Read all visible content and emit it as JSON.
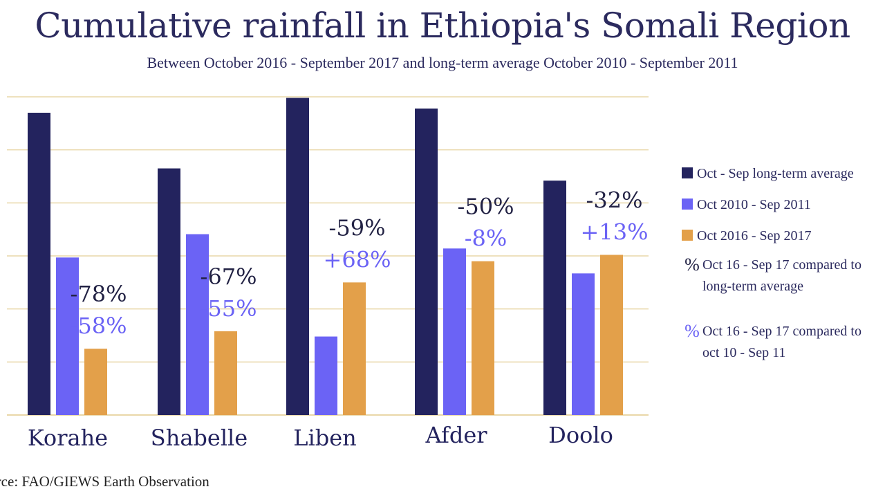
{
  "chart_data": {
    "type": "bar",
    "title": "Cumulative rainfall in Ethiopia's Somali Region",
    "subtitle": "Between October 2016 - September 2017 and long-term average October 2010 - September 2011",
    "categories": [
      "Korahe",
      "Shabelle",
      "Liben",
      "Afder",
      "Doolo"
    ],
    "series": [
      {
        "name": "Oct - Sep long-term average",
        "color": "#23235e",
        "values": [
          570,
          465,
          598,
          578,
          442
        ]
      },
      {
        "name": "Oct 2010 - Sep 2011",
        "color": "#6b63f5",
        "values": [
          297,
          341,
          148,
          314,
          267
        ]
      },
      {
        "name": "Oct 2016 - Sep 2017",
        "color": "#e3a04a",
        "values": [
          125,
          158,
          250,
          290,
          302
        ]
      }
    ],
    "annotations": [
      {
        "category": "Korahe",
        "vs_longterm": "-78%",
        "vs_2010": "-58%"
      },
      {
        "category": "Shabelle",
        "vs_longterm": "-67%",
        "vs_2010": "-55%"
      },
      {
        "category": "Liben",
        "vs_longterm": "-59%",
        "vs_2010": "+68%"
      },
      {
        "category": "Afder",
        "vs_longterm": "-50%",
        "vs_2010": "-8%"
      },
      {
        "category": "Doolo",
        "vs_longterm": "-32%",
        "vs_2010": "+13%"
      }
    ],
    "annotation_colors": {
      "vs_longterm": "#222244",
      "vs_2010": "#6b63f5"
    },
    "ylim": [
      0,
      600
    ],
    "grid": true,
    "gridline_color": "#e9d7a8",
    "legend_position": "right"
  },
  "legend": {
    "items": [
      {
        "label": "Oct - Sep long-term average",
        "color": "#23235e"
      },
      {
        "label": "Oct 2010 - Sep 2011",
        "color": "#6b63f5"
      },
      {
        "label": "Oct 2016 - Sep 2017",
        "color": "#e3a04a"
      }
    ],
    "pct_symbol": "%",
    "note_longterm_line1": "Oct 16 - Sep 17 compared to",
    "note_longterm_line2": "long-term average",
    "note_2010_line1": "Oct 16 - Sep 17 compared to",
    "note_2010_line2": "oct 10 - Sep 11"
  },
  "source": "Source: FAO/GIEWS Earth Observation"
}
